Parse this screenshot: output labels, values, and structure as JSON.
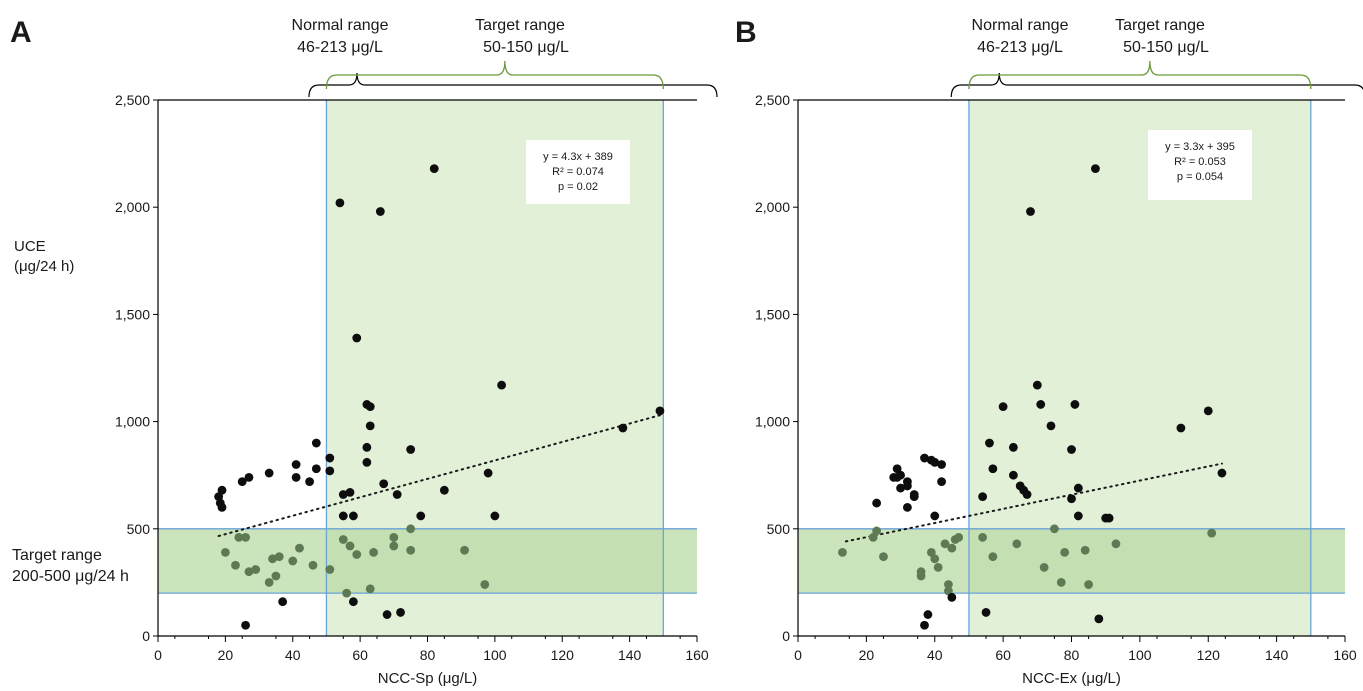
{
  "chart_data": [
    {
      "type": "scatter",
      "panel_label": "A",
      "xlabel": "NCC-Sp (μg/L)",
      "ylabel_lines": [
        "UCE",
        "(μg/24 h)"
      ],
      "xlim": [
        0,
        160
      ],
      "ylim": [
        0,
        2500
      ],
      "x_ticks": [
        0,
        20,
        40,
        60,
        80,
        100,
        120,
        140,
        160
      ],
      "y_ticks": [
        0,
        500,
        1000,
        1500,
        2000,
        2500
      ],
      "x_tick_labels": [
        "0",
        "20",
        "40",
        "60",
        "80",
        "100",
        "120",
        "140",
        "160"
      ],
      "y_tick_labels": [
        "0",
        "500",
        "1,000",
        "1,500",
        "2,000",
        "2,500"
      ],
      "normal_range": {
        "label_lines": [
          "Normal range",
          "46-213 μg/L"
        ],
        "from": 46,
        "to": 213
      },
      "target_range_x": {
        "label_lines": [
          "Target range",
          "50-150 μg/L"
        ],
        "from": 50,
        "to": 150
      },
      "target_range_y": {
        "label_lines": [
          "Target range",
          "200-500 μg/24 h"
        ],
        "from": 200,
        "to": 500
      },
      "regression": {
        "slope": 4.3,
        "intercept": 389,
        "x_from": 18,
        "x_to": 150,
        "label_lines": [
          "y = 4.3x + 389",
          "R² = 0.074",
          "p = 0.02"
        ]
      },
      "colors": {
        "point": "#0d0d0d",
        "point_in_target": "#5e7a55",
        "target_fill": "#e3f0d8",
        "band_fill": "#b9dba6",
        "range_line": "#6aa3d8",
        "brace": "#6a9a3a"
      },
      "points": [
        [
          18,
          650
        ],
        [
          18.5,
          620
        ],
        [
          19,
          680
        ],
        [
          19,
          600
        ],
        [
          20,
          390
        ],
        [
          23,
          330
        ],
        [
          24,
          460
        ],
        [
          25,
          720
        ],
        [
          26,
          460
        ],
        [
          26,
          50
        ],
        [
          27,
          300
        ],
        [
          27,
          740
        ],
        [
          29,
          310
        ],
        [
          33,
          250
        ],
        [
          33,
          760
        ],
        [
          34,
          360
        ],
        [
          35,
          280
        ],
        [
          36,
          370
        ],
        [
          37,
          160
        ],
        [
          40,
          350
        ],
        [
          41,
          740
        ],
        [
          41,
          800
        ],
        [
          42,
          410
        ],
        [
          45,
          720
        ],
        [
          46,
          330
        ],
        [
          47,
          780
        ],
        [
          47,
          900
        ],
        [
          51,
          310
        ],
        [
          51,
          830
        ],
        [
          51,
          770
        ],
        [
          54,
          2020
        ],
        [
          55,
          450
        ],
        [
          55,
          560
        ],
        [
          55,
          660
        ],
        [
          56,
          200
        ],
        [
          57,
          670
        ],
        [
          57,
          420
        ],
        [
          58,
          160
        ],
        [
          58,
          560
        ],
        [
          59,
          1390
        ],
        [
          59,
          380
        ],
        [
          62,
          880
        ],
        [
          62,
          1080
        ],
        [
          62,
          810
        ],
        [
          63,
          1070
        ],
        [
          63,
          980
        ],
        [
          63,
          220
        ],
        [
          64,
          390
        ],
        [
          66,
          1980
        ],
        [
          67,
          710
        ],
        [
          68,
          100
        ],
        [
          70,
          420
        ],
        [
          70,
          460
        ],
        [
          71,
          660
        ],
        [
          72,
          110
        ],
        [
          75,
          400
        ],
        [
          75,
          500
        ],
        [
          75,
          870
        ],
        [
          78,
          560
        ],
        [
          82,
          2180
        ],
        [
          85,
          680
        ],
        [
          91,
          400
        ],
        [
          97,
          240
        ],
        [
          98,
          760
        ],
        [
          100,
          560
        ],
        [
          102,
          1170
        ],
        [
          138,
          970
        ],
        [
          149,
          1050
        ]
      ]
    },
    {
      "type": "scatter",
      "panel_label": "B",
      "xlabel": "NCC-Ex (μg/L)",
      "ylabel_lines": [],
      "xlim": [
        0,
        160
      ],
      "ylim": [
        0,
        2500
      ],
      "x_ticks": [
        0,
        20,
        40,
        60,
        80,
        100,
        120,
        140,
        160
      ],
      "y_ticks": [
        0,
        500,
        1000,
        1500,
        2000,
        2500
      ],
      "x_tick_labels": [
        "0",
        "20",
        "40",
        "60",
        "80",
        "100",
        "120",
        "140",
        "160"
      ],
      "y_tick_labels": [
        "0",
        "500",
        "1,000",
        "1,500",
        "2,000",
        "2,500"
      ],
      "normal_range": {
        "label_lines": [
          "Normal range",
          "46-213 μg/L"
        ],
        "from": 46,
        "to": 213
      },
      "target_range_x": {
        "label_lines": [
          "Target range",
          "50-150 μg/L"
        ],
        "from": 50,
        "to": 150
      },
      "target_range_y": {
        "label_lines": [],
        "from": 200,
        "to": 500
      },
      "regression": {
        "slope": 3.3,
        "intercept": 395,
        "x_from": 14,
        "x_to": 124,
        "label_lines": [
          "y = 3.3x + 395",
          "R² = 0.053",
          "p = 0.054"
        ]
      },
      "colors": {
        "point": "#0d0d0d",
        "point_in_target": "#5e7a55",
        "target_fill": "#e3f0d8",
        "band_fill": "#b9dba6",
        "range_line": "#6aa3d8",
        "brace": "#6a9a3a"
      },
      "points": [
        [
          13,
          390
        ],
        [
          22,
          460
        ],
        [
          23,
          620
        ],
        [
          23,
          490
        ],
        [
          25,
          370
        ],
        [
          28,
          740
        ],
        [
          29,
          780
        ],
        [
          29,
          740
        ],
        [
          30,
          690
        ],
        [
          30,
          750
        ],
        [
          32,
          600
        ],
        [
          32,
          720
        ],
        [
          32,
          700
        ],
        [
          34,
          660
        ],
        [
          34,
          650
        ],
        [
          36,
          280
        ],
        [
          36,
          300
        ],
        [
          37,
          830
        ],
        [
          37,
          50
        ],
        [
          38,
          100
        ],
        [
          39,
          820
        ],
        [
          39,
          390
        ],
        [
          40,
          810
        ],
        [
          40,
          560
        ],
        [
          40,
          360
        ],
        [
          41,
          320
        ],
        [
          42,
          720
        ],
        [
          42,
          800
        ],
        [
          43,
          430
        ],
        [
          44,
          240
        ],
        [
          44,
          210
        ],
        [
          45,
          180
        ],
        [
          45,
          410
        ],
        [
          46,
          450
        ],
        [
          47,
          460
        ],
        [
          54,
          650
        ],
        [
          54,
          460
        ],
        [
          55,
          110
        ],
        [
          56,
          900
        ],
        [
          57,
          780
        ],
        [
          57,
          370
        ],
        [
          60,
          1070
        ],
        [
          63,
          750
        ],
        [
          63,
          880
        ],
        [
          64,
          430
        ],
        [
          65,
          700
        ],
        [
          66,
          680
        ],
        [
          67,
          660
        ],
        [
          68,
          1980
        ],
        [
          70,
          1170
        ],
        [
          71,
          1080
        ],
        [
          72,
          320
        ],
        [
          74,
          980
        ],
        [
          75,
          500
        ],
        [
          77,
          250
        ],
        [
          78,
          390
        ],
        [
          80,
          870
        ],
        [
          80,
          640
        ],
        [
          81,
          1080
        ],
        [
          82,
          560
        ],
        [
          82,
          690
        ],
        [
          84,
          400
        ],
        [
          85,
          240
        ],
        [
          87,
          2180
        ],
        [
          88,
          80
        ],
        [
          90,
          550
        ],
        [
          91,
          550
        ],
        [
          93,
          430
        ],
        [
          112,
          970
        ],
        [
          120,
          1050
        ],
        [
          121,
          480
        ],
        [
          124,
          760
        ]
      ]
    }
  ]
}
